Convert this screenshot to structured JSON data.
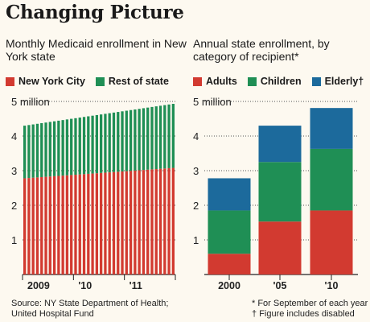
{
  "title": "Changing Picture",
  "colors": {
    "red": "#d23a30",
    "green": "#1f8f55",
    "blue": "#1c6a9c",
    "background": "#fdf9f0"
  },
  "chart_data": [
    {
      "type": "bar",
      "title": "Monthly Medicaid enrollment in New York state",
      "stacked": true,
      "unit_label": "5 million",
      "ylim": [
        0,
        5
      ],
      "yticks": [
        "1",
        "2",
        "3",
        "4"
      ],
      "x_tick_labels": [
        "2009",
        "'10",
        "'11"
      ],
      "grid": "dotted",
      "legend_position": "top",
      "series": [
        {
          "name": "New York City",
          "color": "#d23a30",
          "start": 2.78,
          "end": 3.08
        },
        {
          "name": "Rest of state",
          "color": "#1f8f55",
          "start": 1.52,
          "end": 1.85
        }
      ],
      "num_months": 36
    },
    {
      "type": "bar",
      "title": "Annual state enrollment, by category of recipient*",
      "stacked": true,
      "unit_label": "5 million",
      "ylim": [
        0,
        5
      ],
      "yticks": [
        "1",
        "2",
        "3",
        "4"
      ],
      "categories": [
        "2000",
        "'05",
        "'10"
      ],
      "grid": "dotted",
      "legend_position": "top",
      "series": [
        {
          "name": "Adults",
          "color": "#d23a30",
          "values": [
            0.6,
            1.53,
            1.85
          ]
        },
        {
          "name": "Children",
          "color": "#1f8f55",
          "values": [
            1.25,
            1.72,
            1.78
          ]
        },
        {
          "name": "Elderly†",
          "color": "#1c6a9c",
          "values": [
            0.93,
            1.05,
            1.18
          ]
        }
      ]
    }
  ],
  "source": [
    "Source: NY State Department of Health;",
    "United Hospital Fund"
  ],
  "notes": [
    "* For September of each year",
    "† Figure includes disabled"
  ]
}
